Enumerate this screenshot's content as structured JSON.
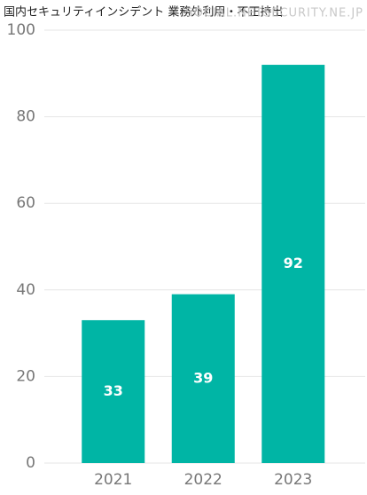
{
  "chart_data": {
    "type": "bar",
    "title": "国内セキュリティインシデント 業務外利用・不正持出",
    "watermark": "SOCIAL.NETSECURITY.NE.JP",
    "categories": [
      "2021",
      "2022",
      "2023"
    ],
    "values": [
      33,
      39,
      92
    ],
    "color": "#00b5a5",
    "ylim": [
      0,
      100
    ],
    "yticks": [
      0,
      20,
      40,
      60,
      80,
      100
    ],
    "grid": true
  }
}
